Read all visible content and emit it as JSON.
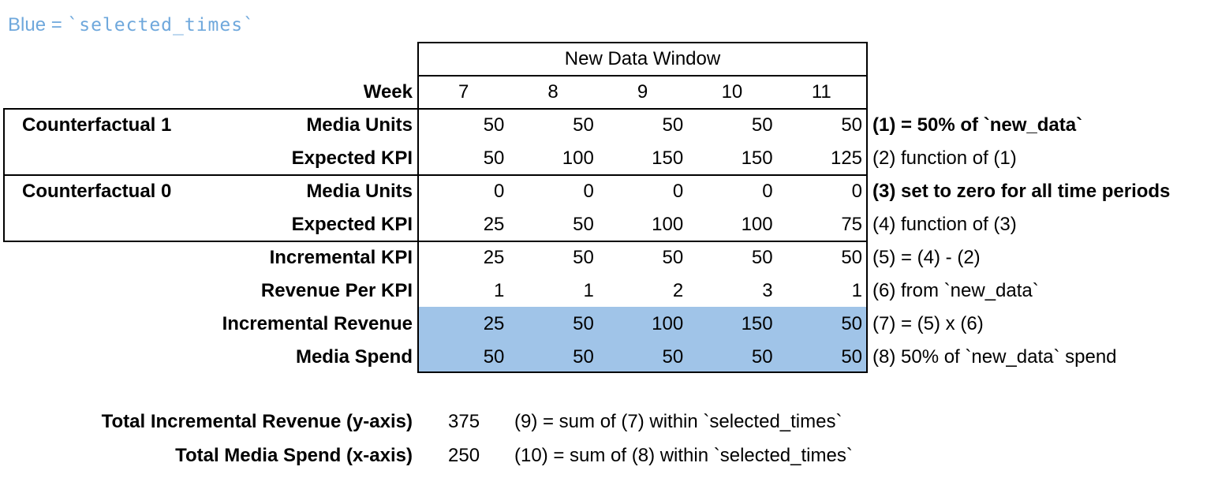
{
  "legend": {
    "prefix": "Blue = ",
    "code": "`selected_times`"
  },
  "header": {
    "window_title": "New Data Window",
    "week_label": "Week",
    "weeks": [
      "7",
      "8",
      "9",
      "10",
      "11"
    ]
  },
  "groups": [
    {
      "label": "Counterfactual 1"
    },
    {
      "label": "Counterfactual 0"
    }
  ],
  "rows": [
    {
      "label": "Media Units",
      "values": [
        "50",
        "50",
        "50",
        "50",
        "50"
      ],
      "note": "(1) = 50% of `new_data`"
    },
    {
      "label": "Expected KPI",
      "values": [
        "50",
        "100",
        "150",
        "150",
        "125"
      ],
      "note": "(2) function of (1)"
    },
    {
      "label": "Media Units",
      "values": [
        "0",
        "0",
        "0",
        "0",
        "0"
      ],
      "note": "(3) set to zero for all time periods"
    },
    {
      "label": "Expected KPI",
      "values": [
        "25",
        "50",
        "100",
        "100",
        "75"
      ],
      "note": "(4) function of (3)"
    },
    {
      "label": "Incremental KPI",
      "values": [
        "25",
        "50",
        "50",
        "50",
        "50"
      ],
      "note": "(5) = (4) - (2)"
    },
    {
      "label": "Revenue Per KPI",
      "values": [
        "1",
        "1",
        "2",
        "3",
        "1"
      ],
      "note": "(6) from `new_data`"
    },
    {
      "label": "Incremental Revenue",
      "values": [
        "25",
        "50",
        "100",
        "150",
        "50"
      ],
      "note": "(7) = (5) x (6)"
    },
    {
      "label": "Media Spend",
      "values": [
        "50",
        "50",
        "50",
        "50",
        "50"
      ],
      "note": "(8) 50% of `new_data` spend"
    }
  ],
  "totals": [
    {
      "label": "Total Incremental Revenue (y-axis)",
      "value": "375",
      "note": "(9) = sum of (7) within `selected_times`"
    },
    {
      "label": "Total Media Spend (x-axis)",
      "value": "250",
      "note": "(10) = sum of (8) within `selected_times`"
    }
  ],
  "colors": {
    "highlight": "#A0C4E8",
    "legend-blue": "#6FA8DC"
  }
}
